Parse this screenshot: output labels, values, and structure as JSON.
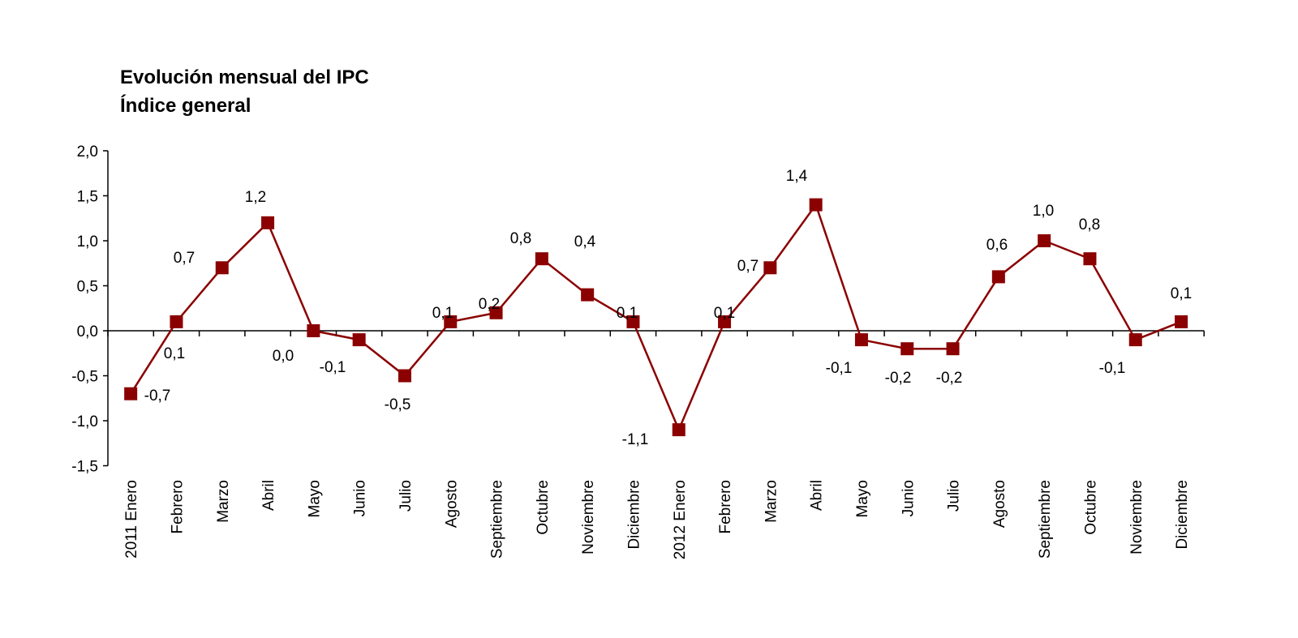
{
  "chart_data": {
    "type": "line",
    "title": "Evolución mensual del IPC",
    "subtitle": "Índice general",
    "xlabel": "",
    "ylabel": "",
    "ylim": [
      -1.5,
      2.0
    ],
    "yticks": [
      "2,0",
      "1,5",
      "1,0",
      "0,5",
      "0,0",
      "-0,5",
      "-1,0",
      "-1,5"
    ],
    "ytick_values": [
      2.0,
      1.5,
      1.0,
      0.5,
      0.0,
      -0.5,
      -1.0,
      -1.5
    ],
    "categories": [
      "2011 Enero",
      "Febrero",
      "Marzo",
      "Abril",
      "Mayo",
      "Junio",
      "Julio",
      "Agosto",
      "Septiembre",
      "Octubre",
      "Noviembre",
      "Diciembre",
      "2012 Enero",
      "Febrero",
      "Marzo",
      "Abril",
      "Mayo",
      "Junio",
      "Julio",
      "Agosto",
      "Septiembre",
      "Octubre",
      "Noviembre",
      "Diciembre"
    ],
    "values": [
      -0.7,
      0.1,
      0.7,
      1.2,
      0.0,
      -0.1,
      -0.5,
      0.1,
      0.2,
      0.8,
      0.4,
      0.1,
      -1.1,
      0.1,
      0.7,
      1.4,
      -0.1,
      -0.2,
      -0.2,
      0.6,
      1.0,
      0.8,
      -0.1,
      0.1
    ],
    "data_labels": [
      "-0,7",
      "0,1",
      "0,7",
      "1,2",
      "0,0",
      "-0,1",
      "-0,5",
      "0,1",
      "0,2",
      "0,8",
      "0,4",
      "0,1",
      "-1,1",
      "0,1",
      "0,7",
      "1,4",
      "-0,1",
      "-0,2",
      "-0,2",
      "0,6",
      "1,0",
      "0,8",
      "-0,1",
      "0,1"
    ],
    "marker": "square",
    "grid": false,
    "legend": "none",
    "colors": {
      "series": "#8b0000"
    }
  }
}
